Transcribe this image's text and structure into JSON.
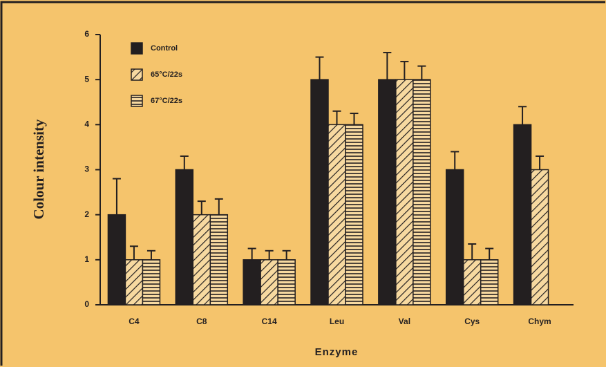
{
  "chart_data": {
    "type": "bar",
    "categories": [
      "C4",
      "C8",
      "C14",
      "Leu",
      "Val",
      "Cys",
      "Chym"
    ],
    "series": [
      {
        "name": "Control",
        "color": "#231f20",
        "pattern": "solid",
        "values": [
          2,
          3,
          1,
          5,
          5,
          3,
          4
        ],
        "errors": [
          0.8,
          0.3,
          0.25,
          0.5,
          0.6,
          0.4,
          0.4
        ]
      },
      {
        "name": "65°C/22s",
        "color": "#231f20",
        "pattern": "diagonal",
        "values": [
          1,
          2,
          1,
          4,
          5,
          1,
          3
        ],
        "errors": [
          0.3,
          0.3,
          0.2,
          0.3,
          0.4,
          0.35,
          0.3
        ]
      },
      {
        "name": "67°C/22s",
        "color": "#231f20",
        "pattern": "horizontal",
        "values": [
          1,
          2,
          1,
          4,
          5,
          1,
          null
        ],
        "errors": [
          0.2,
          0.35,
          0.2,
          0.25,
          0.3,
          0.25,
          null
        ]
      }
    ],
    "ylabel": "Colour intensity",
    "xlabel": "Enzyme",
    "ylim": [
      0,
      6
    ],
    "yticks": [
      0,
      1,
      2,
      3,
      4,
      5,
      6
    ],
    "legend": "upper left"
  }
}
